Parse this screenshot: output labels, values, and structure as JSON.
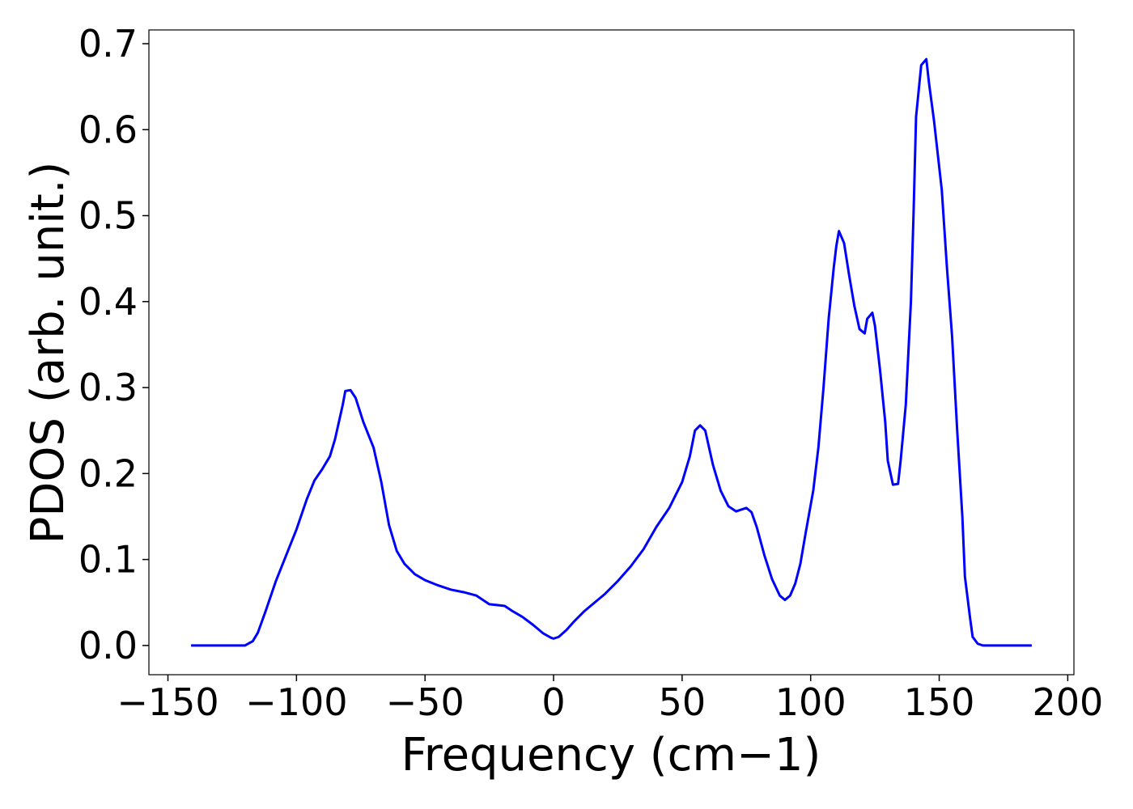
{
  "chart_data": {
    "type": "line",
    "xlabel": "Frequency (cm−1)",
    "ylabel": "PDOS (arb. unit.)",
    "color": "#0000ff",
    "xlim": [
      -157.4,
      202.4
    ],
    "ylim": [
      -0.034,
      0.716
    ],
    "xticks": [
      {
        "value": -150,
        "label": "−150"
      },
      {
        "value": -100,
        "label": "−100"
      },
      {
        "value": -50,
        "label": "−50"
      },
      0,
      50,
      100,
      150,
      200
    ],
    "yticks": [
      {
        "value": 0,
        "label": "0.0"
      },
      0.1,
      0.2,
      0.3,
      0.4,
      0.5,
      0.6,
      0.7
    ],
    "x": [
      -141,
      -120,
      -117,
      -115,
      -112,
      -108,
      -104,
      -100,
      -96,
      -93,
      -90,
      -87,
      -85,
      -82,
      -81,
      -79,
      -77,
      -74,
      -70,
      -67,
      -64,
      -61,
      -58,
      -54,
      -50,
      -45,
      -40,
      -35,
      -30,
      -27,
      -25,
      -22,
      -19,
      -16,
      -12,
      -8,
      -4,
      -1,
      0,
      2,
      5,
      8,
      12,
      16,
      20,
      25,
      30,
      35,
      40,
      45,
      50,
      53,
      55,
      57,
      59,
      62,
      65,
      68,
      71,
      73,
      75,
      77,
      79,
      82,
      85,
      88,
      90,
      92,
      94,
      96,
      98,
      101,
      103,
      105,
      107,
      109,
      110,
      111,
      113,
      115,
      117,
      119,
      121,
      122,
      124,
      125,
      127,
      129,
      130,
      132,
      134,
      135,
      137,
      139,
      140,
      141,
      143,
      145,
      146,
      148,
      151,
      153,
      155,
      157,
      159,
      160,
      162,
      163,
      165,
      167,
      186
    ],
    "values": [
      0,
      0,
      0.005,
      0.015,
      0.04,
      0.075,
      0.105,
      0.135,
      0.17,
      0.192,
      0.205,
      0.22,
      0.24,
      0.28,
      0.296,
      0.297,
      0.288,
      0.26,
      0.23,
      0.19,
      0.14,
      0.11,
      0.095,
      0.083,
      0.076,
      0.07,
      0.065,
      0.062,
      0.058,
      0.052,
      0.048,
      0.047,
      0.046,
      0.04,
      0.033,
      0.024,
      0.014,
      0.009,
      0.008,
      0.01,
      0.018,
      0.028,
      0.04,
      0.05,
      0.06,
      0.075,
      0.092,
      0.112,
      0.138,
      0.16,
      0.19,
      0.22,
      0.25,
      0.256,
      0.25,
      0.21,
      0.18,
      0.162,
      0.156,
      0.158,
      0.16,
      0.155,
      0.138,
      0.105,
      0.077,
      0.058,
      0.053,
      0.058,
      0.072,
      0.095,
      0.13,
      0.18,
      0.23,
      0.3,
      0.38,
      0.44,
      0.465,
      0.482,
      0.468,
      0.43,
      0.395,
      0.368,
      0.363,
      0.38,
      0.387,
      0.372,
      0.32,
      0.26,
      0.215,
      0.187,
      0.188,
      0.215,
      0.28,
      0.4,
      0.5,
      0.615,
      0.675,
      0.682,
      0.655,
      0.61,
      0.53,
      0.44,
      0.36,
      0.25,
      0.15,
      0.08,
      0.032,
      0.01,
      0.002,
      0,
      0
    ]
  }
}
